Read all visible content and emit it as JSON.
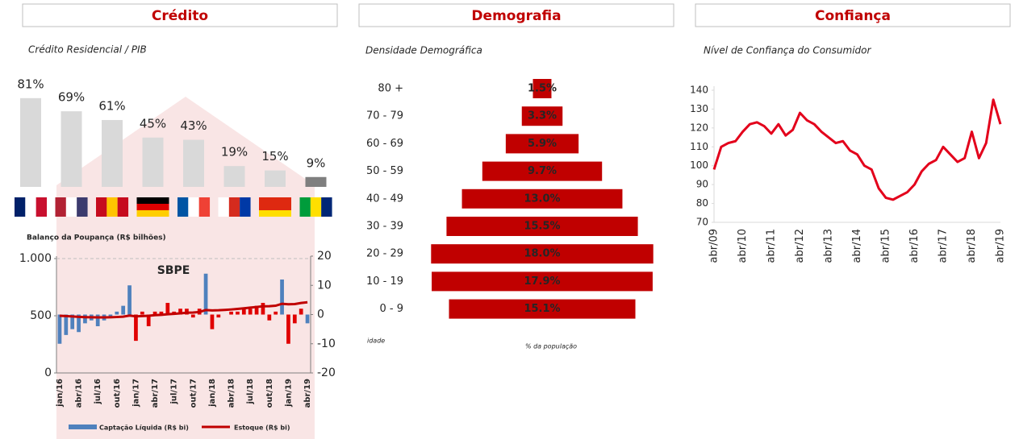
{
  "headers": [
    "Crédito",
    "Demografia",
    "Confiança"
  ],
  "chart_data": [
    {
      "type": "bar",
      "title": "Crédito Residencial / PIB",
      "categories": [
        null,
        null,
        null,
        null,
        null,
        null,
        null,
        null
      ],
      "values": [
        81,
        69,
        61,
        45,
        43,
        19,
        15,
        9
      ],
      "value_labels": [
        "81%",
        "69%",
        "61%",
        "45%",
        "43%",
        "19%",
        "15%",
        "9%"
      ],
      "colors": [
        "#d9d9d9",
        "#d9d9d9",
        "#d9d9d9",
        "#d9d9d9",
        "#d9d9d9",
        "#d9d9d9",
        "#d9d9d9",
        "#7f7f7f"
      ]
    },
    {
      "type": "bar-line",
      "title": "Balanço da Poupança (R$ bilhões)",
      "annotation": "SBPE",
      "x": [
        "jan/16",
        null,
        null,
        "abr/16",
        null,
        null,
        "jul/16",
        null,
        null,
        "out/16",
        null,
        null,
        "jan/17",
        null,
        null,
        "abr/17",
        null,
        null,
        "jul/17",
        null,
        null,
        "out/17",
        null,
        null,
        "jan/18",
        null,
        null,
        "abr/18",
        null,
        null,
        "jul/18",
        null,
        null,
        "out/18",
        null,
        null,
        "jan/19",
        null,
        null,
        "abr/19"
      ],
      "ylim": [
        0,
        1000
      ],
      "yticks": [
        0,
        500,
        {
          "value": 1000,
          "label": "1.000"
        }
      ],
      "y2lim": [
        -20,
        20
      ],
      "y2ticks": [
        -20,
        -10,
        0,
        10,
        20
      ],
      "series": [
        {
          "name": "Captação Líquida (R$ bi)",
          "type": "bar",
          "axis": "y2",
          "color": "#4f81bd",
          "colors": [
            "#4f81bd",
            "#4f81bd",
            "#4f81bd",
            "#4f81bd",
            "#4f81bd",
            "#4f81bd",
            "#4f81bd",
            "#4f81bd",
            "#4f81bd",
            "#4f81bd",
            "#4f81bd",
            "#4f81bd",
            "#e00000",
            "#e00000",
            "#e00000",
            "#e00000",
            "#e00000",
            "#e00000",
            "#e00000",
            "#e00000",
            "#e00000",
            "#e00000",
            "#e00000",
            "#4f81bd",
            "#e00000",
            "#e00000",
            "#e00000",
            "#e00000",
            "#e00000",
            "#e00000",
            "#e00000",
            "#e00000",
            "#e00000",
            "#e00000",
            "#e00000",
            "#4f81bd",
            "#e00000",
            "#e00000",
            "#e00000",
            "#4f81bd"
          ],
          "values": [
            -10,
            -7,
            -5,
            -6,
            -3,
            -2,
            -4,
            -2,
            -1,
            1,
            3,
            10,
            -9,
            1,
            -4,
            1,
            1,
            4,
            1,
            2,
            2,
            -1,
            2,
            14,
            -5,
            -1,
            0,
            1,
            1,
            2,
            2,
            3,
            4,
            -2,
            1,
            12,
            -10,
            -3,
            2,
            -3
          ]
        },
        {
          "name": "Estoque (R$ bi)",
          "type": "line",
          "color": "#c00000",
          "values": [
            500,
            497,
            494,
            490,
            488,
            487,
            486,
            486,
            487,
            489,
            492,
            502,
            495,
            497,
            500,
            505,
            508,
            513,
            517,
            521,
            526,
            528,
            533,
            550,
            547,
            548,
            551,
            555,
            560,
            565,
            571,
            577,
            583,
            584,
            588,
            605,
            600,
            602,
            612,
            618
          ]
        }
      ]
    },
    {
      "type": "pyramid",
      "title": "Densidade Demográfica",
      "ylabel": "idade",
      "xlabel": "% da população",
      "categories": [
        "80 +",
        "70 - 79",
        "60 - 69",
        "50 - 59",
        "40 - 49",
        "30 - 39",
        "20 - 29",
        "10 - 19",
        "0 - 9"
      ],
      "values": [
        1.5,
        3.3,
        5.9,
        9.7,
        13.0,
        15.5,
        18.0,
        17.9,
        15.1
      ],
      "value_labels": [
        "1.5%",
        "3.3%",
        "5.9%",
        "9.7%",
        "13.0%",
        "15.5%",
        "18.0%",
        "17.9%",
        "15.1%"
      ],
      "color": "#c00000"
    },
    {
      "type": "line",
      "title": "Nível de Confiança do Consumidor",
      "x": [
        "abr/09",
        null,
        null,
        null,
        "abr/10",
        null,
        null,
        null,
        "abr/11",
        null,
        null,
        null,
        "abr/12",
        null,
        null,
        null,
        "abr/13",
        null,
        null,
        null,
        "abr/14",
        null,
        null,
        null,
        "abr/15",
        null,
        null,
        null,
        "abr/16",
        null,
        null,
        null,
        "abr/17",
        null,
        null,
        null,
        "abr/18",
        null,
        null,
        null,
        "abr/19"
      ],
      "values": [
        98,
        110,
        112,
        113,
        118,
        122,
        123,
        121,
        117,
        122,
        116,
        119,
        128,
        124,
        122,
        118,
        115,
        112,
        113,
        108,
        106,
        100,
        98,
        88,
        83,
        82,
        84,
        86,
        90,
        97,
        101,
        103,
        110,
        106,
        102,
        104,
        118,
        104,
        112,
        135,
        122
      ],
      "ylim": [
        70,
        140
      ],
      "yticks": [
        70,
        80,
        90,
        100,
        110,
        120,
        130,
        140
      ],
      "color": "#e3001b"
    }
  ]
}
